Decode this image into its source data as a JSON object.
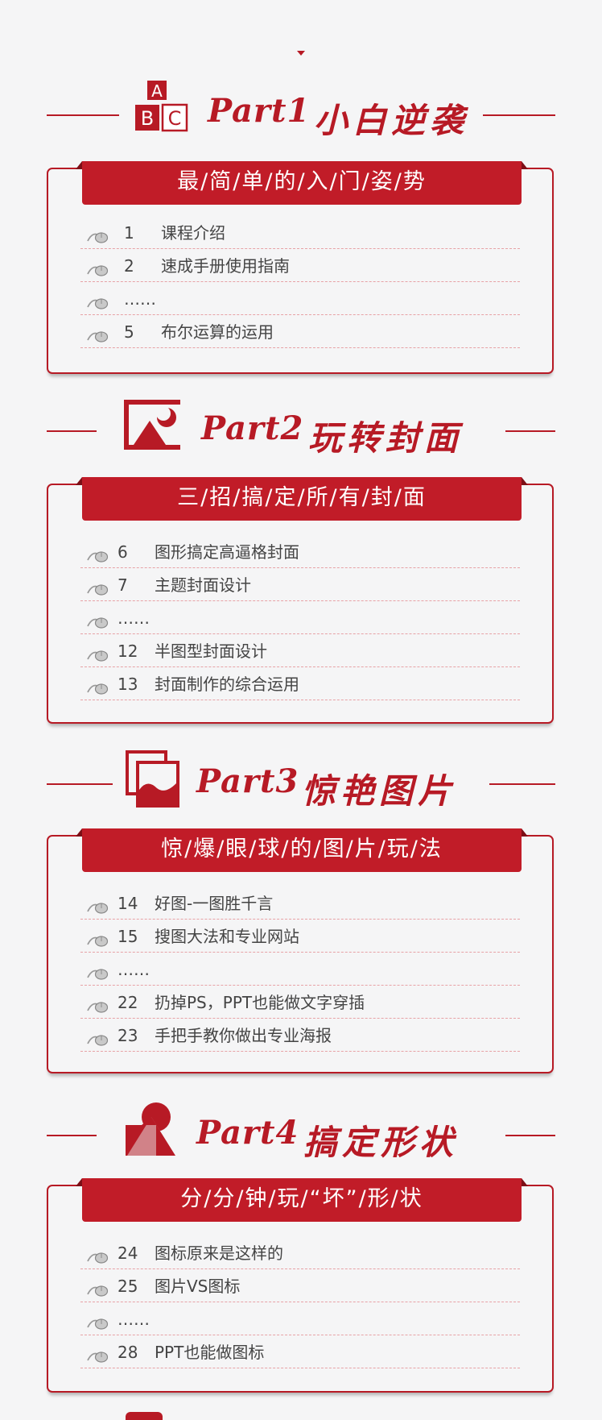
{
  "colors": {
    "accent": "#b71a25",
    "banner": "#c11c28",
    "background": "#f5f5f6",
    "text": "#444444"
  },
  "parts": [
    {
      "part_label": "Part1",
      "title": "小白逆袭",
      "icon": "abc-blocks-icon",
      "icon_letters": [
        "A",
        "B",
        "C"
      ],
      "banner": "最/简/单/的/入/门/姿/势",
      "items": [
        {
          "num": "1",
          "name": "课程介绍"
        },
        {
          "num": "2",
          "name": "速成手册使用指南"
        },
        {
          "num": "",
          "name": "……"
        },
        {
          "num": "5",
          "name": "布尔运算的运用"
        }
      ]
    },
    {
      "part_label": "Part2",
      "title": "玩转封面",
      "icon": "cover-mountain-icon",
      "banner": "三/招/搞/定/所/有/封/面",
      "items": [
        {
          "num": "6",
          "name": "图形搞定高逼格封面"
        },
        {
          "num": "7",
          "name": "主题封面设计"
        },
        {
          "num": "",
          "name": "……"
        },
        {
          "num": "12",
          "name": "半图型封面设计"
        },
        {
          "num": "13",
          "name": "封面制作的综合运用"
        }
      ]
    },
    {
      "part_label": "Part3",
      "title": "惊艳图片",
      "icon": "stacked-pictures-icon",
      "banner": "惊/爆/眼/球/的/图/片/玩/法",
      "items": [
        {
          "num": "14",
          "name": "好图-一图胜千言"
        },
        {
          "num": "15",
          "name": "搜图大法和专业网站"
        },
        {
          "num": "",
          "name": "……"
        },
        {
          "num": "22",
          "name": "扔掉PS，PPT也能做文字穿插"
        },
        {
          "num": "23",
          "name": "手把手教你做出专业海报"
        }
      ]
    },
    {
      "part_label": "Part4",
      "title": "搞定形状",
      "icon": "shapes-icon",
      "banner": "分/分/钟/玩/“坏”/形/状",
      "items": [
        {
          "num": "24",
          "name": "图标原来是这样的"
        },
        {
          "num": "25",
          "name": "图片VS图标"
        },
        {
          "num": "",
          "name": "……"
        },
        {
          "num": "28",
          "name": "PPT也能做图标"
        }
      ]
    }
  ]
}
